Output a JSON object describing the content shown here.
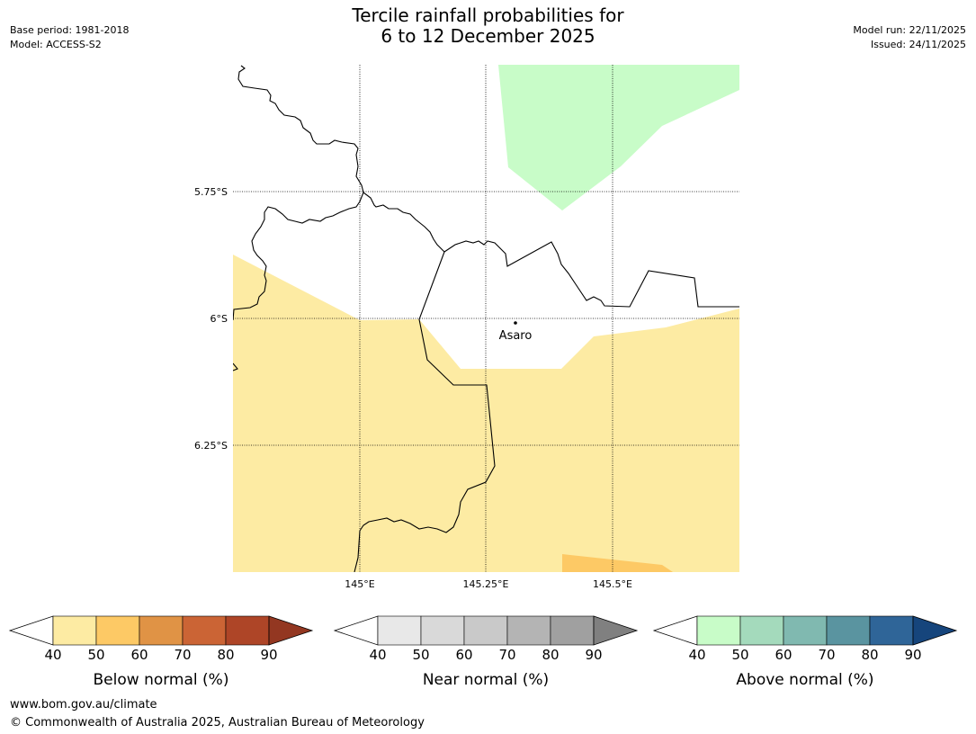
{
  "header": {
    "title_line1": "Tercile rainfall probabilities for",
    "title_line2": "6 to 12 December 2025",
    "base_period": "Base period: 1981-2018",
    "model": "Model: ACCESS-S2",
    "model_run": "Model run: 22/11/2025",
    "issued": "Issued: 24/11/2025"
  },
  "map": {
    "lat_labels": [
      "5.75°S",
      "6°S",
      "6.25°S"
    ],
    "lon_labels": [
      "145°E",
      "145.25°E",
      "145.5°E"
    ],
    "place": "Asaro",
    "colors": {
      "below_40_50": "#fdeba3",
      "below_50_60": "#fdc965",
      "above_40_50": "#c8fcc8",
      "border": "#000000",
      "grid": "#000000"
    }
  },
  "legends": [
    {
      "id": "below",
      "label": "Below normal (%)",
      "ticks": [
        "40",
        "50",
        "60",
        "70",
        "80",
        "90"
      ],
      "colors": [
        "#fdeba3",
        "#fdc965",
        "#e09345",
        "#cb6435",
        "#ae4527",
        "#933721"
      ]
    },
    {
      "id": "near",
      "label": "Near normal (%)",
      "ticks": [
        "40",
        "50",
        "60",
        "70",
        "80",
        "90"
      ],
      "colors": [
        "#e8e8e8",
        "#d9d9d9",
        "#c9c9c9",
        "#b4b4b4",
        "#a0a0a0",
        "#808080"
      ]
    },
    {
      "id": "above",
      "label": "Above normal (%)",
      "ticks": [
        "40",
        "50",
        "60",
        "70",
        "80",
        "90"
      ],
      "colors": [
        "#c8fcc8",
        "#a4dabc",
        "#80b9b0",
        "#5a94a0",
        "#2f6598",
        "#16457c"
      ]
    }
  ],
  "footer": {
    "url": "www.bom.gov.au/climate",
    "copyright": "© Commonwealth of Australia 2025, Australian Bureau of Meteorology"
  }
}
